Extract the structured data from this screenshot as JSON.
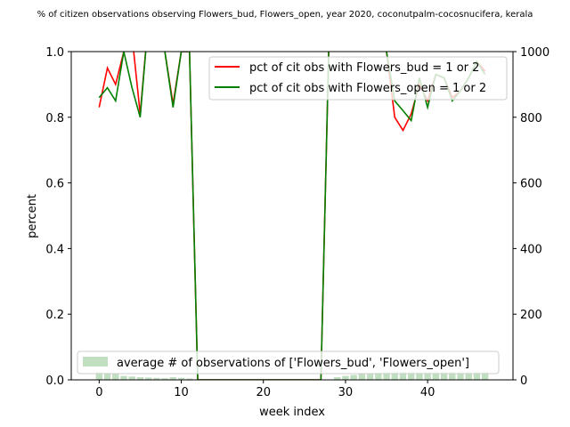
{
  "chart_data": {
    "type": "line",
    "title": "% of citizen observations observing Flowers_bud, Flowers_open, year 2020, coconutpalm-cocosnucifera, kerala",
    "xlabel": "week index",
    "ylabel": "percent",
    "xlim": [
      -3.4,
      50.4
    ],
    "ylim": [
      0,
      1
    ],
    "y2lim": [
      0,
      1000
    ],
    "x_ticks": [
      0,
      10,
      20,
      30,
      40
    ],
    "y_ticks": [
      0.0,
      0.2,
      0.4,
      0.6,
      0.8,
      1.0
    ],
    "y2_ticks": [
      0,
      200,
      400,
      600,
      800,
      1000
    ],
    "x_tick_labels": [
      "0",
      "10",
      "20",
      "30",
      "40"
    ],
    "y_tick_labels": [
      "0.0",
      "0.2",
      "0.4",
      "0.6",
      "0.8",
      "1.0"
    ],
    "y2_tick_labels": [
      "0",
      "200",
      "400",
      "600",
      "800",
      "1000"
    ],
    "grid": false,
    "series": [
      {
        "name": "pct of cit obs with Flowers_bud = 1 or 2",
        "color": "#ff0000",
        "x": [
          0,
          1,
          2,
          3,
          4,
          5,
          6,
          7,
          8,
          9,
          10,
          11,
          12,
          13,
          14,
          15,
          16,
          17,
          18,
          19,
          20,
          21,
          22,
          23,
          24,
          25,
          26,
          27,
          28,
          29,
          30,
          31,
          32,
          33,
          34,
          35,
          36,
          37,
          38,
          39,
          40,
          41,
          42,
          43,
          44,
          45,
          46,
          47
        ],
        "values": [
          0.83,
          0.95,
          0.9,
          1.0,
          1.05,
          0.81,
          1.1,
          1.1,
          1.0,
          0.84,
          1.0,
          1.0,
          0,
          0,
          0,
          0,
          0,
          0,
          0,
          0,
          0,
          0,
          0,
          0,
          0,
          0,
          0,
          0,
          1.05,
          1.1,
          1.1,
          1.1,
          1.1,
          1.1,
          1.1,
          1.0,
          0.8,
          0.76,
          0.81,
          0.9,
          0.85,
          0.93,
          0.92,
          0.86,
          0.88,
          0.92,
          0.97,
          0.94
        ]
      },
      {
        "name": "pct of cit obs with Flowers_open = 1 or 2",
        "color": "#008000",
        "x": [
          0,
          1,
          2,
          3,
          4,
          5,
          6,
          7,
          8,
          9,
          10,
          11,
          12,
          13,
          14,
          15,
          16,
          17,
          18,
          19,
          20,
          21,
          22,
          23,
          24,
          25,
          26,
          27,
          28,
          29,
          30,
          31,
          32,
          33,
          34,
          35,
          36,
          37,
          38,
          39,
          40,
          41,
          42,
          43,
          44,
          45,
          46,
          47
        ],
        "values": [
          0.86,
          0.89,
          0.85,
          1.0,
          0.89,
          0.8,
          1.1,
          1.1,
          1.0,
          0.83,
          1.0,
          1.0,
          0,
          0,
          0,
          0,
          0,
          0,
          0,
          0,
          0,
          0,
          0,
          0,
          0,
          0,
          0,
          0,
          1.05,
          1.1,
          1.1,
          1.1,
          1.1,
          1.1,
          1.1,
          1.0,
          0.85,
          0.82,
          0.79,
          0.92,
          0.83,
          0.93,
          0.92,
          0.85,
          0.88,
          0.92,
          0.97,
          0.93
        ]
      }
    ],
    "bar_series": {
      "name": "average # of observations of ['Flowers_bud', 'Flowers_open']",
      "color": "#c0dfc0",
      "axis": "right",
      "x": [
        0,
        1,
        2,
        3,
        4,
        5,
        6,
        7,
        8,
        9,
        10,
        11,
        12,
        13,
        14,
        15,
        16,
        17,
        18,
        19,
        20,
        21,
        22,
        23,
        24,
        25,
        26,
        27,
        28,
        29,
        30,
        31,
        32,
        33,
        34,
        35,
        36,
        37,
        38,
        39,
        40,
        41,
        42,
        43,
        44,
        45,
        46,
        47
      ],
      "values": [
        25,
        22,
        18,
        12,
        10,
        8,
        7,
        6,
        5,
        8,
        6,
        4,
        0,
        0,
        0,
        0,
        0,
        0,
        0,
        0,
        0,
        0,
        0,
        0,
        0,
        0,
        0,
        0,
        0,
        8,
        12,
        15,
        18,
        20,
        22,
        24,
        25,
        25,
        25,
        25,
        25,
        25,
        25,
        25,
        25,
        25,
        25,
        25
      ]
    },
    "legend_upper": "top-right",
    "legend_lower": "bottom-center"
  }
}
